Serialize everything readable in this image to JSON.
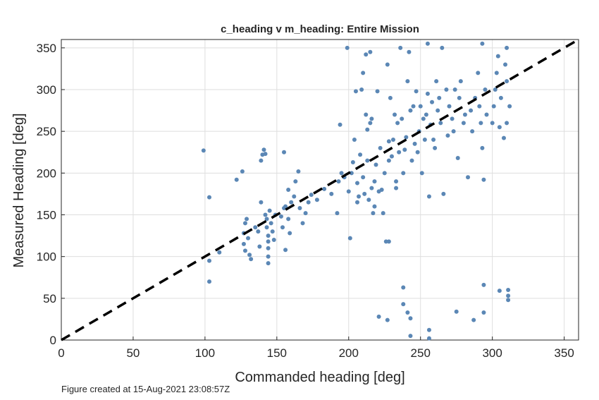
{
  "chart_data": {
    "type": "scatter",
    "title": "c_heading v m_heading: Entire Mission",
    "x_label": "Commanded heading [deg]",
    "y_label": "Measured Heading [deg]",
    "footer": "Figure created at 15-Aug-2021 23:08:57Z",
    "color": "#5b87b5",
    "grid": true,
    "xlim": [
      0,
      360
    ],
    "ylim": [
      0,
      360
    ],
    "xticks": [
      0,
      50,
      100,
      150,
      200,
      250,
      300,
      350
    ],
    "yticks": [
      0,
      50,
      100,
      150,
      200,
      250,
      300,
      350
    ],
    "reference_line": {
      "x": [
        0,
        360
      ],
      "y": [
        0,
        360
      ],
      "color": "#000000"
    },
    "x": [
      99,
      103,
      103,
      103,
      110,
      122,
      126,
      127,
      127,
      128,
      128,
      129,
      130,
      131,
      132,
      135,
      137,
      138,
      139,
      139,
      140,
      141,
      142,
      142,
      143,
      143,
      144,
      144,
      144,
      144,
      144,
      145,
      146,
      147,
      148,
      149,
      153,
      154,
      155,
      155,
      156,
      156,
      158,
      158,
      159,
      160,
      162,
      163,
      165,
      166,
      168,
      170,
      172,
      174,
      178,
      183,
      188,
      192,
      193,
      194,
      195,
      197,
      199,
      200,
      201,
      202,
      203,
      204,
      205,
      206,
      206,
      207,
      208,
      209,
      210,
      210,
      211,
      212,
      212,
      213,
      213,
      214,
      215,
      215,
      216,
      216,
      217,
      218,
      219,
      220,
      221,
      222,
      223,
      224,
      225,
      226,
      227,
      228,
      228,
      229,
      230,
      231,
      232,
      233,
      234,
      235,
      236,
      237,
      238,
      238,
      239,
      240,
      241,
      242,
      243,
      243,
      244,
      245,
      246,
      247,
      248,
      249,
      250,
      251,
      252,
      253,
      254,
      255,
      255,
      256,
      256,
      256,
      257,
      258,
      259,
      260,
      261,
      262,
      263,
      264,
      265,
      266,
      268,
      269,
      270,
      272,
      273,
      274,
      275,
      276,
      277,
      278,
      280,
      281,
      283,
      285,
      286,
      287,
      288,
      290,
      291,
      292,
      293,
      293,
      294,
      294,
      294,
      295,
      296,
      300,
      301,
      302,
      303,
      304,
      305,
      305,
      306,
      308,
      309,
      310,
      310,
      310,
      311,
      311,
      311,
      312,
      238,
      241,
      221,
      227,
      243,
      233,
      218,
      228
    ],
    "values": [
      227,
      171,
      95,
      70,
      105,
      192,
      202,
      128,
      115,
      107,
      140,
      145,
      122,
      102,
      97,
      135,
      130,
      112,
      165,
      215,
      222,
      228,
      223,
      150,
      145,
      135,
      125,
      118,
      110,
      100,
      92,
      155,
      140,
      130,
      120,
      150,
      148,
      135,
      225,
      158,
      160,
      108,
      145,
      180,
      128,
      165,
      172,
      190,
      202,
      158,
      140,
      152,
      165,
      174,
      168,
      181,
      175,
      152,
      190,
      258,
      200,
      195,
      350,
      178,
      122,
      200,
      213,
      240,
      298,
      188,
      165,
      172,
      222,
      300,
      320,
      195,
      175,
      342,
      270,
      215,
      252,
      168,
      345,
      260,
      182,
      265,
      152,
      190,
      210,
      298,
      178,
      230,
      180,
      152,
      200,
      118,
      330,
      118,
      215,
      290,
      220,
      240,
      270,
      190,
      260,
      225,
      350,
      265,
      200,
      63,
      228,
      243,
      310,
      345,
      275,
      5,
      215,
      280,
      235,
      298,
      225,
      250,
      280,
      200,
      265,
      240,
      270,
      355,
      295,
      172,
      12,
      2,
      258,
      285,
      240,
      230,
      310,
      275,
      290,
      260,
      350,
      175,
      300,
      245,
      280,
      265,
      250,
      300,
      34,
      218,
      290,
      310,
      260,
      270,
      195,
      275,
      250,
      24,
      290,
      320,
      280,
      260,
      355,
      230,
      192,
      66,
      33,
      300,
      270,
      260,
      280,
      300,
      320,
      340,
      255,
      59,
      290,
      242,
      330,
      350,
      310,
      260,
      60,
      48,
      53,
      280,
      43,
      33,
      28,
      24,
      26,
      182,
      160,
      238
    ]
  }
}
